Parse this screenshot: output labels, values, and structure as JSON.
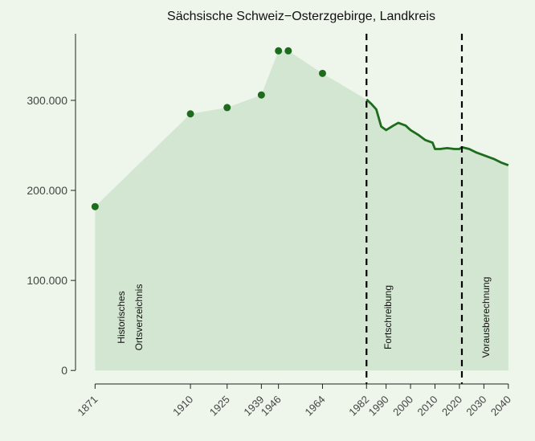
{
  "chart_data": {
    "type": "scatter",
    "title": "Sächsische Schweiz−Osterzgebirge, Landkreis",
    "series": [
      {
        "name": "Historisches Ortsverzeichnis",
        "kind": "points",
        "color": "#1d6b1d",
        "x": [
          1871,
          1910,
          1925,
          1939,
          1946,
          1950,
          1964
        ],
        "values": [
          182000,
          285000,
          292000,
          306000,
          355000,
          355000,
          330000
        ]
      },
      {
        "name": "Fortschreibung",
        "kind": "line",
        "color": "#1d6b1d",
        "x": [
          1982,
          1984,
          1986,
          1988,
          1990,
          1993,
          1995,
          1998,
          2000,
          2003,
          2006,
          2009,
          2010,
          2012,
          2015,
          2018,
          2020,
          2021,
          2024,
          2027,
          2030,
          2034,
          2037,
          2040
        ],
        "values": [
          301000,
          296000,
          290000,
          271000,
          267000,
          272000,
          275000,
          272000,
          267000,
          262000,
          256000,
          253000,
          246000,
          246000,
          247000,
          246000,
          246000,
          248000,
          246000,
          242000,
          239000,
          235000,
          231000,
          228000
        ]
      }
    ],
    "area_color": "#d3e6d2",
    "vlines": [
      1982,
      2021
    ],
    "annotations": [
      "Historisches",
      "Ortsverzeichnis",
      "Fortschreibung",
      "Vorausberechnung"
    ],
    "xlim": [
      1863,
      2044
    ],
    "xticks": [
      1871,
      1910,
      1925,
      1939,
      1946,
      1964,
      1982,
      1990,
      2000,
      2010,
      2020,
      2030,
      2040
    ],
    "ylim": [
      -15000,
      374000
    ],
    "yticks": [
      0,
      {
        "value": 100000,
        "label": "100.000"
      },
      {
        "value": 200000,
        "label": "200.000"
      },
      {
        "value": 300000,
        "label": "300.000"
      }
    ]
  }
}
